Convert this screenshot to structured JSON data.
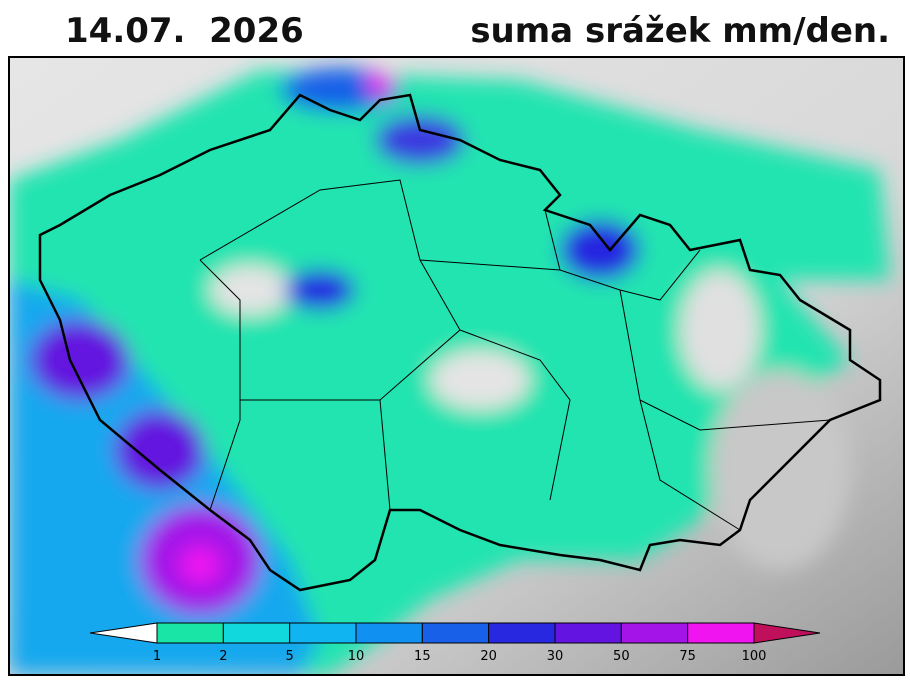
{
  "title": {
    "date": "14.07.  2026",
    "text": "suma srážek mm/den."
  },
  "colorbar": {
    "labels": [
      "1",
      "2",
      "5",
      "10",
      "15",
      "20",
      "30",
      "50",
      "75",
      "100"
    ],
    "colors": [
      "#19e6a6",
      "#10d8dc",
      "#10b4f0",
      "#1090f0",
      "#1860e8",
      "#2828e0",
      "#6414e0",
      "#a414e8",
      "#f014f0"
    ],
    "under_color": "#ffffff",
    "over_color": "#c0105c"
  }
}
